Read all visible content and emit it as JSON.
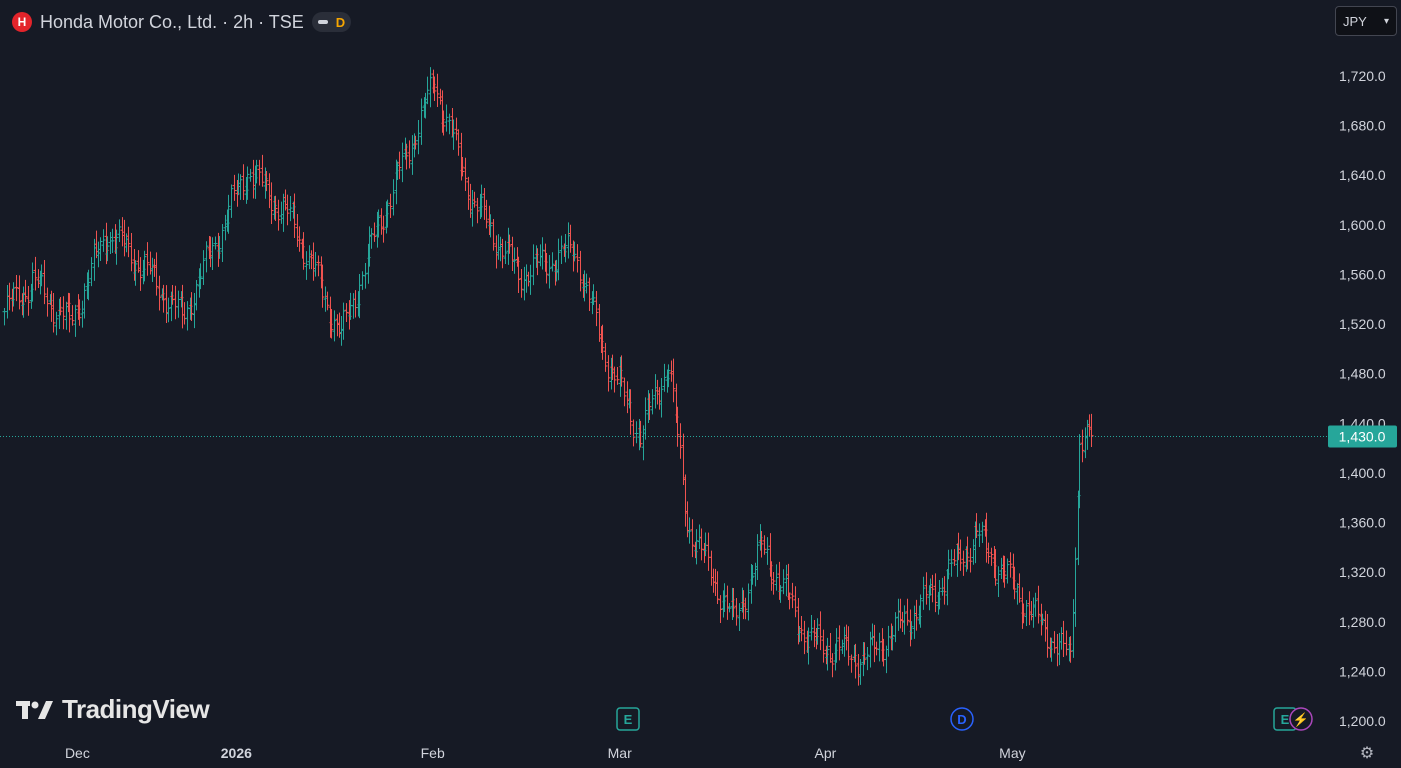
{
  "header": {
    "title": "Honda Motor Co., Ltd. · 2h · TSE",
    "logo_glyph": "H",
    "badge_letter": "D"
  },
  "currency": {
    "label": "JPY"
  },
  "watermark": {
    "text": "TradingView"
  },
  "chart_data": {
    "type": "ohlc",
    "title": "Honda Motor Co., Ltd. · 2h · TSE",
    "ylim": [
      1190,
      1735
    ],
    "y_ticks": [
      "1,200.0",
      "1,240.0",
      "1,280.0",
      "1,320.0",
      "1,360.0",
      "1,400.0",
      "1,440.0",
      "1,480.0",
      "1,520.0",
      "1,560.0",
      "1,600.0",
      "1,640.0",
      "1,680.0",
      "1,720.0"
    ],
    "y_tick_values": [
      1200,
      1240,
      1280,
      1320,
      1360,
      1400,
      1440,
      1480,
      1520,
      1560,
      1600,
      1640,
      1680,
      1720
    ],
    "x_ticks": [
      "Dec",
      "2026",
      "Feb",
      "Mar",
      "Apr",
      "May"
    ],
    "last_price": 1430.0,
    "last_price_label": "1,430.0",
    "colors": {
      "up": "#26a69a",
      "down": "#ef5350",
      "last": "#26a69a",
      "bg": "#161a25",
      "text": "#d1d4dc"
    },
    "grid": false,
    "events": [
      {
        "label": "E",
        "kind": "earnings",
        "color": "#26a69a"
      },
      {
        "label": "D",
        "kind": "dividend",
        "color": "#2962ff"
      },
      {
        "label": "E",
        "kind": "earnings",
        "color": "#26a69a"
      },
      {
        "label": "⚡",
        "kind": "split",
        "color": "#ab47bc"
      }
    ],
    "key_points": [
      {
        "date": "Nov 26",
        "close": 1530
      },
      {
        "date": "Dec 1",
        "close": 1555
      },
      {
        "date": "Dec 5",
        "close": 1520
      },
      {
        "date": "Dec 10",
        "close": 1595
      },
      {
        "date": "Dec 17",
        "close": 1565
      },
      {
        "date": "Dec 24",
        "close": 1525
      },
      {
        "date": "Jan 8",
        "close": 1645
      },
      {
        "date": "Jan 15",
        "close": 1600
      },
      {
        "date": "Jan 22",
        "close": 1510
      },
      {
        "date": "Jan 28",
        "close": 1600
      },
      {
        "date": "Feb 5",
        "close": 1715
      },
      {
        "date": "Feb 10",
        "close": 1620
      },
      {
        "date": "Feb 18",
        "close": 1560
      },
      {
        "date": "Feb 26",
        "close": 1580
      },
      {
        "date": "Mar 3",
        "close": 1500
      },
      {
        "date": "Mar 9",
        "close": 1430
      },
      {
        "date": "Mar 12",
        "close": 1490
      },
      {
        "date": "Mar 16",
        "close": 1360
      },
      {
        "date": "Mar 23",
        "close": 1280
      },
      {
        "date": "Mar 27",
        "close": 1340
      },
      {
        "date": "Apr 2",
        "close": 1265
      },
      {
        "date": "Apr 10",
        "close": 1250
      },
      {
        "date": "Apr 21",
        "close": 1300
      },
      {
        "date": "Apr 28",
        "close": 1350
      },
      {
        "date": "May 7",
        "close": 1275
      },
      {
        "date": "May 12",
        "close": 1250
      },
      {
        "date": "May 13",
        "close": 1430
      }
    ]
  }
}
